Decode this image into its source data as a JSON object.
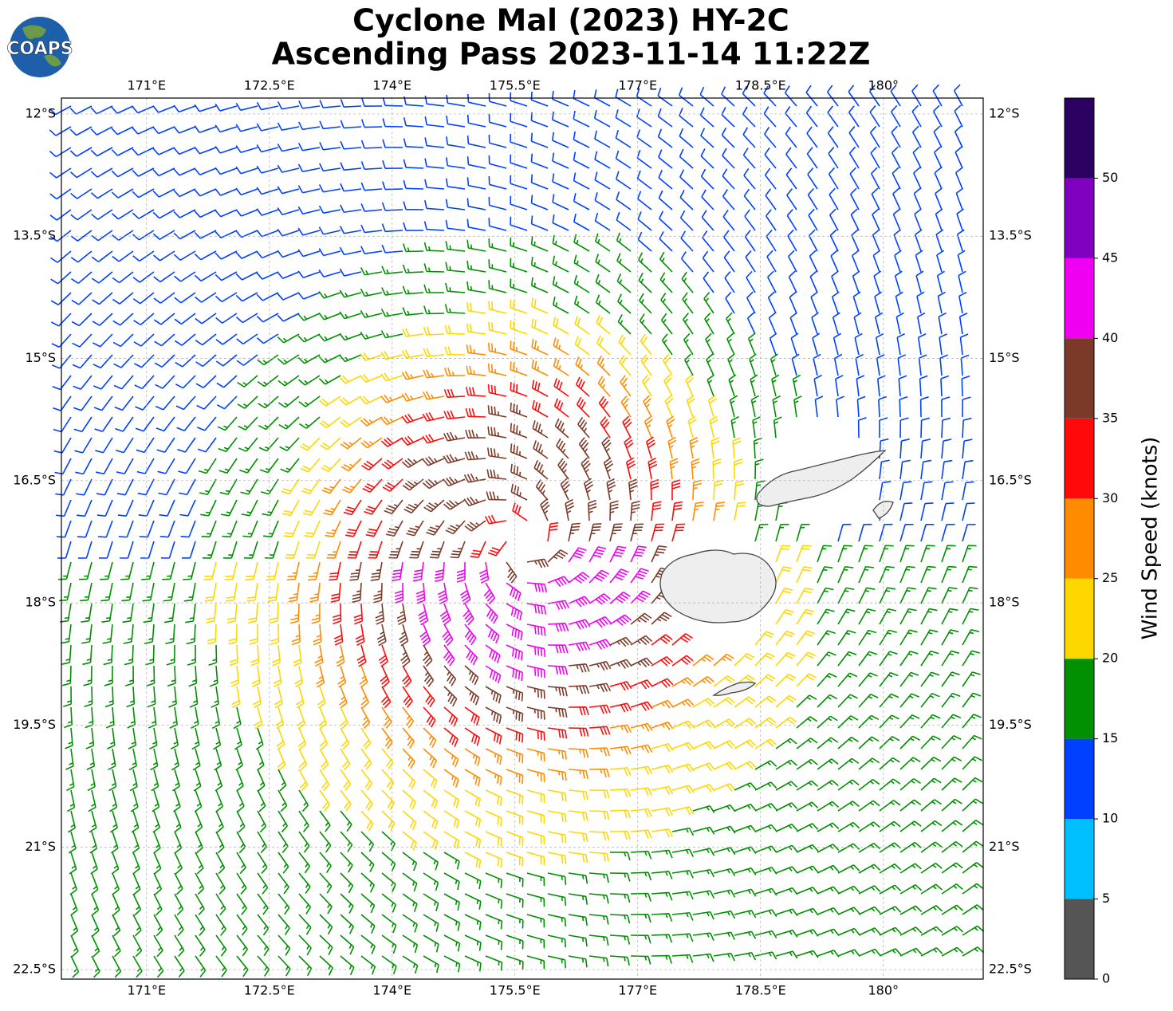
{
  "header": {
    "logo_text": "COAPS",
    "title_line1": "Cyclone Mal (2023) HY-2C",
    "title_line2": "Ascending Pass 2023-11-14 11:22Z"
  },
  "map": {
    "xlim": [
      169.96,
      181.22
    ],
    "ylim": [
      -11.805,
      -22.617
    ],
    "xticks": [
      {
        "value": 171,
        "label": "171°E"
      },
      {
        "value": 172.5,
        "label": "172.5°E"
      },
      {
        "value": 174,
        "label": "174°E"
      },
      {
        "value": 175.5,
        "label": "175.5°E"
      },
      {
        "value": 177,
        "label": "177°E"
      },
      {
        "value": 178.5,
        "label": "178.5°E"
      },
      {
        "value": 180,
        "label": "180°"
      }
    ],
    "yticks": [
      {
        "value": -12,
        "label": "12°S"
      },
      {
        "value": -13.5,
        "label": "13.5°S"
      },
      {
        "value": -15,
        "label": "15°S"
      },
      {
        "value": -16.5,
        "label": "16.5°S"
      },
      {
        "value": -18,
        "label": "18°S"
      },
      {
        "value": -19.5,
        "label": "19.5°S"
      },
      {
        "value": -21,
        "label": "21°S"
      },
      {
        "value": -22.5,
        "label": "22.5°S"
      }
    ],
    "grid": true
  },
  "colorbar": {
    "label": "Wind Speed (knots)",
    "lim": [
      0,
      55
    ],
    "bounds": [
      0,
      5,
      10,
      15,
      20,
      25,
      30,
      35,
      40,
      45,
      50,
      55
    ],
    "colors": [
      "#555555",
      "#00bfff",
      "#0040ff",
      "#009000",
      "#ffd700",
      "#ff8c00",
      "#ff0a0a",
      "#7b3a28",
      "#f000f0",
      "#8000c0",
      "#2a0060"
    ],
    "ticks": [
      0,
      5,
      10,
      15,
      20,
      25,
      30,
      35,
      40,
      45,
      50
    ]
  }
}
